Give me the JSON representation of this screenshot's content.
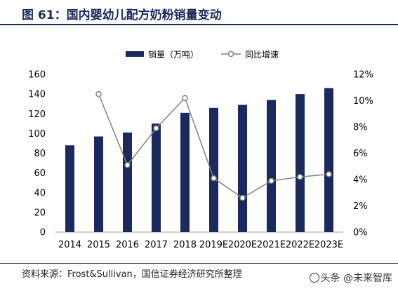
{
  "title": "图 61：国内婴幼儿配方奶粉销量变动",
  "source": "资料来源：Frost&Sullivan，国信证券经济研究所整理",
  "watermark": "头条 @未来智库",
  "colors": {
    "bar": "#1a2a5e",
    "line": "#808080",
    "title": "#1a2a5e"
  },
  "chart_data": {
    "type": "bar",
    "categories": [
      "2014",
      "2015",
      "2016",
      "2017",
      "2018",
      "2019E",
      "2020E",
      "2021E",
      "2022E",
      "2023E"
    ],
    "series": [
      {
        "name": "销量（万吨）",
        "type": "bar",
        "axis": "left",
        "values": [
          88,
          97,
          101,
          110,
          121,
          126,
          129,
          134,
          140,
          146
        ]
      },
      {
        "name": "同比增速",
        "type": "line",
        "axis": "right",
        "values": [
          null,
          10.5,
          5.1,
          7.9,
          10.2,
          4.1,
          2.6,
          3.9,
          4.2,
          4.4
        ]
      }
    ],
    "y_left": {
      "min": 0,
      "max": 160,
      "ticks": [
        "0",
        "20",
        "40",
        "60",
        "80",
        "100",
        "120",
        "140",
        "160"
      ]
    },
    "y_right": {
      "min": 0,
      "max": 12,
      "ticks": [
        "0%",
        "2%",
        "4%",
        "6%",
        "8%",
        "10%",
        "12%"
      ]
    },
    "legend_position": "top-center",
    "grid": false
  }
}
